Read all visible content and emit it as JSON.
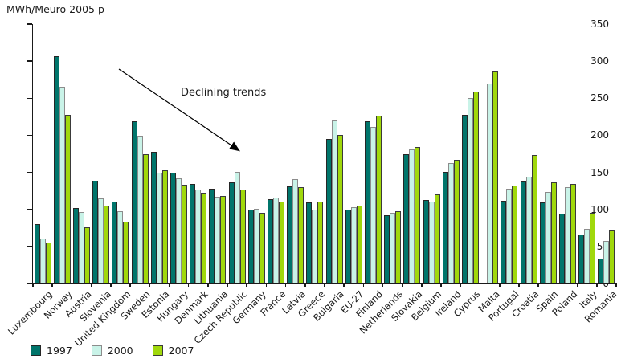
{
  "chart_data": {
    "type": "bar",
    "title": "MWh/Meuro 2005 p",
    "ylabel": "MWh/Meuro 2005 p",
    "xlabel": "",
    "ylim": [
      0,
      350
    ],
    "ytick_interval": 50,
    "grid": false,
    "legend_position": "bottom-left",
    "annotation": {
      "text": "Declining trends",
      "arrow_from": [
        148,
        86
      ],
      "arrow_to": [
        297,
        187
      ],
      "text_pos": [
        225,
        108
      ]
    },
    "categories": [
      "Luxembourg",
      "Norway",
      "Austria",
      "Slovenia",
      "United Kingdom",
      "Sweden",
      "Estonia",
      "Hungary",
      "Denmark",
      "Lithuania",
      "Czech Republic",
      "Germany",
      "France",
      "Latvia",
      "Greece",
      "Bulgaria",
      "EU-27",
      "Finland",
      "Netherlands",
      "Slovakia",
      "Belgium",
      "Ireland",
      "Cyprus",
      "Malta",
      "Portugal",
      "Croatia",
      "Spain",
      "Poland",
      "Italy",
      "Romania"
    ],
    "series": [
      {
        "name": "1997",
        "fill": "#00756B",
        "border": "#262626",
        "values": [
          80,
          307,
          102,
          139,
          110,
          219,
          178,
          149,
          134,
          128,
          136,
          100,
          114,
          131,
          109,
          195,
          100,
          219,
          92,
          174,
          113,
          151,
          228,
          null,
          112,
          138,
          109,
          94,
          66,
          34
        ]
      },
      {
        "name": "2000",
        "fill": "#C9F3E8",
        "border": "#8c8c8c",
        "values": [
          61,
          265,
          96,
          115,
          97,
          199,
          149,
          142,
          127,
          117,
          151,
          101,
          116,
          141,
          100,
          220,
          103,
          211,
          95,
          181,
          111,
          162,
          250,
          270,
          128,
          144,
          124,
          130,
          74,
          57
        ]
      },
      {
        "name": "2007",
        "fill": "#A0D80C",
        "border": "#3a3a3a",
        "values": [
          55,
          228,
          76,
          105,
          83,
          174,
          153,
          133,
          122,
          118,
          127,
          95,
          111,
          130,
          111,
          201,
          105,
          226,
          97,
          184,
          120,
          167,
          259,
          286,
          132,
          173,
          137,
          134,
          95,
          72
        ]
      }
    ]
  }
}
